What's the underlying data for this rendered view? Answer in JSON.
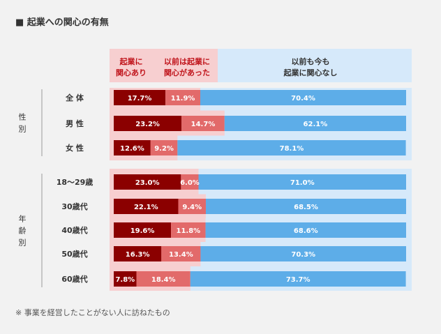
{
  "title": "■ 起業への関心の有無",
  "note": "※ 事業を経営したことがない人に訪ねたもの",
  "chart_data": {
    "type": "bar",
    "stacked": true,
    "orientation": "horizontal",
    "unit": "%",
    "xlim": [
      0,
      100
    ],
    "legend": [
      {
        "name": "起業に関心あり",
        "lines": [
          "起業に",
          "関心あり"
        ],
        "color": "#8b0000"
      },
      {
        "name": "以前は起業に関心があった",
        "lines": [
          "以前は起業に",
          "関心があった"
        ],
        "color": "#e26a6a"
      },
      {
        "name": "以前も今も起業に関心なし",
        "lines": [
          "以前も今も",
          "起業に関心なし"
        ],
        "color": "#5dade8"
      }
    ],
    "groups": [
      {
        "name": "性別",
        "chars": [
          "性",
          "別"
        ],
        "rows": [
          0,
          1,
          2
        ]
      },
      {
        "name": "年齢別",
        "chars": [
          "年",
          "齢",
          "別"
        ],
        "rows": [
          3,
          4,
          5,
          6,
          7
        ]
      }
    ],
    "categories": [
      "全 体",
      "男 性",
      "女 性",
      "18〜29歳",
      "30歳代",
      "40歳代",
      "50歳代",
      "60歳代"
    ],
    "series": [
      {
        "name": "起業に関心あり",
        "values": [
          17.7,
          23.2,
          12.6,
          23.0,
          22.1,
          19.6,
          16.3,
          7.8
        ],
        "labels": [
          "17.7%",
          "23.2%",
          "12.6%",
          "23.0%",
          "22.1%",
          "19.6%",
          "16.3%",
          "7.8%"
        ]
      },
      {
        "name": "以前は起業に関心があった",
        "values": [
          11.9,
          14.7,
          9.2,
          6.0,
          9.4,
          11.8,
          13.4,
          18.4
        ],
        "labels": [
          "11.9%",
          "14.7%",
          "9.2%",
          "6.0%",
          "9.4%",
          "11.8%",
          "13.4%",
          "18.4%"
        ]
      },
      {
        "name": "以前も今も起業に関心なし",
        "values": [
          70.4,
          62.1,
          78.1,
          71.0,
          68.5,
          68.6,
          70.3,
          73.7
        ],
        "labels": [
          "70.4%",
          "62.1%",
          "78.1%",
          "71.0%",
          "68.5%",
          "68.6%",
          "70.3%",
          "73.7%"
        ]
      }
    ]
  }
}
